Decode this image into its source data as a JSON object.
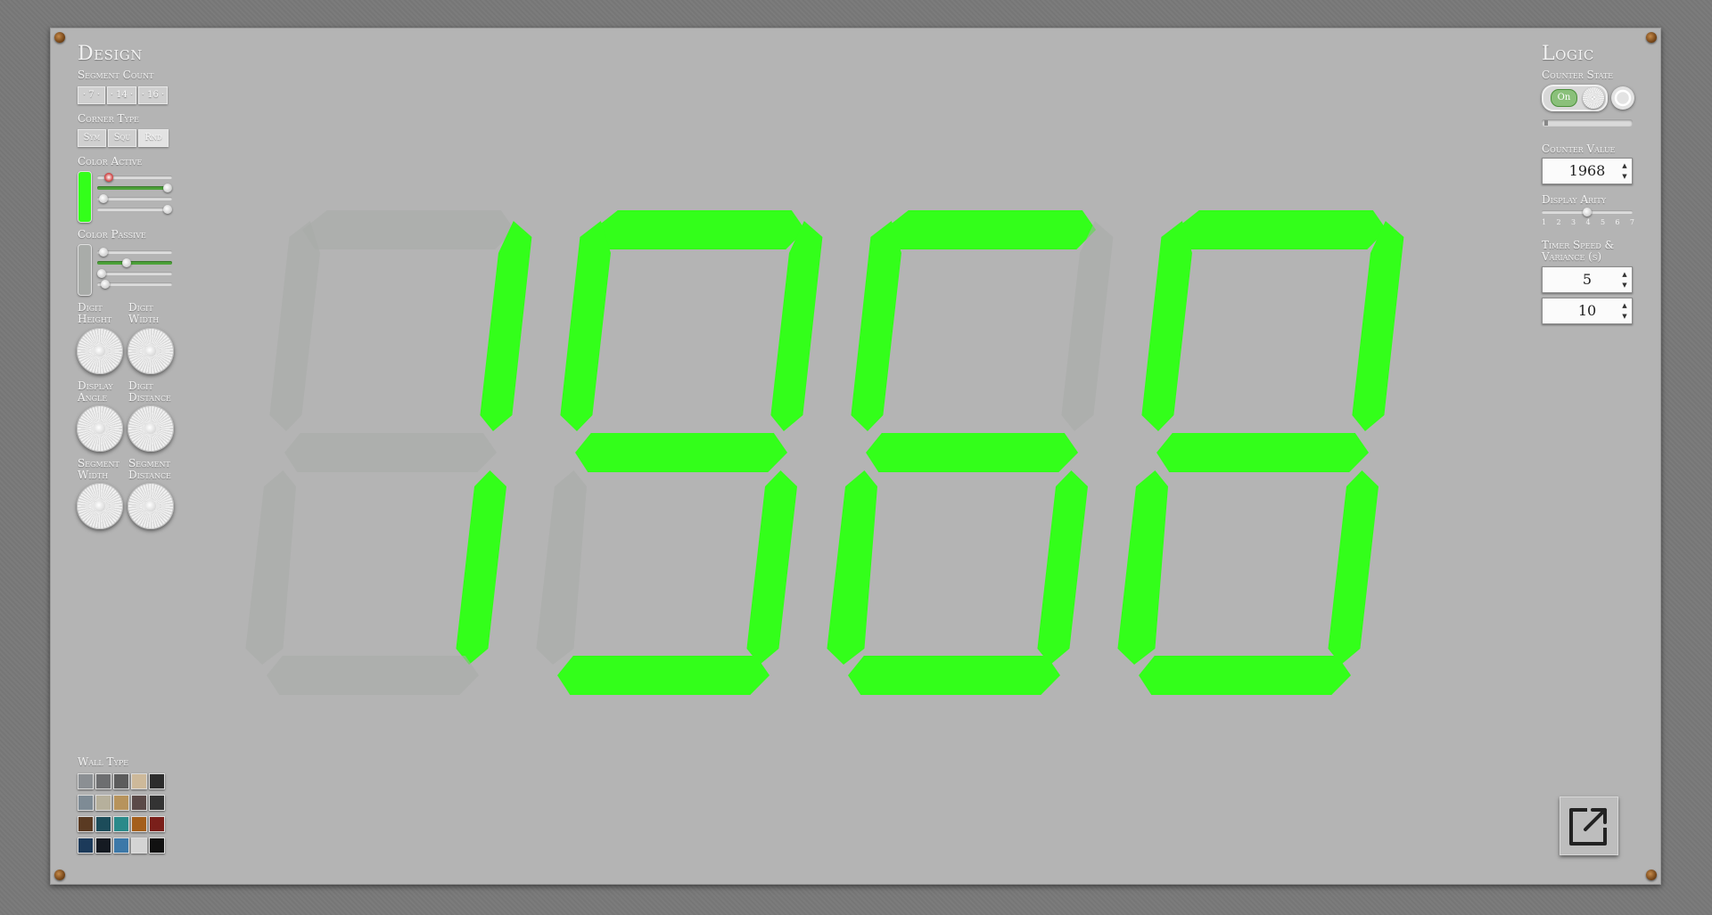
{
  "design": {
    "title": "Design",
    "segment_count": {
      "label": "Segment Count",
      "options": [
        "· 7 ·",
        "· 14 ·",
        "· 16 ·"
      ],
      "selected": 0
    },
    "corner_type": {
      "label": "Corner Type",
      "options": [
        "Sym",
        "Squ",
        "Rnd"
      ],
      "selected": 2
    },
    "color_active": {
      "label": "Color Active",
      "swatch": "#33ff1a"
    },
    "color_passive": {
      "label": "Color Passive",
      "swatch": "#a9aca9"
    },
    "digit_height": "Digit Height",
    "digit_width": "Digit Width",
    "display_angle": "Display Angle",
    "digit_distance": "Digit Distance",
    "segment_width": "Segment Width",
    "segment_distance": "Segment Distance",
    "wall_type": {
      "label": "Wall Type"
    }
  },
  "logic": {
    "title": "Logic",
    "counter_state": {
      "label": "Counter State",
      "toggle": "On"
    },
    "counter_value": {
      "label": "Counter Value",
      "value": "1968"
    },
    "display_arity": {
      "label": "Display Arity",
      "ticks": [
        "1",
        "2",
        "3",
        "4",
        "5",
        "6",
        "7"
      ],
      "value": 4
    },
    "timer": {
      "label": "Timer Speed & Variance (s)",
      "speed": "5",
      "variance": "10"
    }
  },
  "display": {
    "value": "1968",
    "active_color": "#33ff1a",
    "passive_color": "#a9aca9"
  },
  "icons": {
    "external": "external-link-icon",
    "reset": "reset-icon"
  }
}
